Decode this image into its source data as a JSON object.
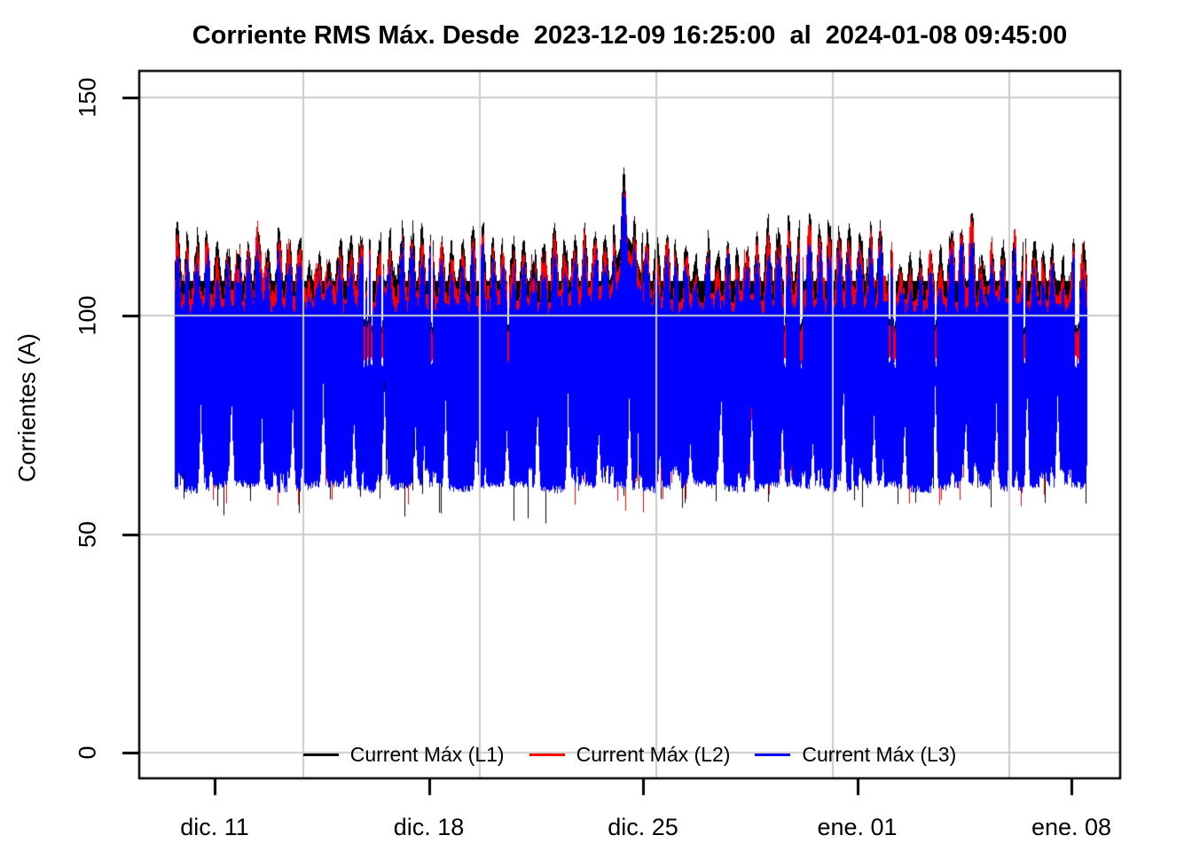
{
  "title": "Corriente RMS Máx. Desde  2023-12-09 16:25:00  al  2024-01-08 09:45:00",
  "chart_data": {
    "type": "line",
    "title": "Corriente RMS Máx. Desde  2023-12-09 16:25:00  al  2024-01-08 09:45:00",
    "xlabel": "",
    "ylabel": "Corrientes (A)",
    "x_start": "2023-12-09 16:25:00",
    "x_end": "2024-01-08 09:45:00",
    "x_tick_labels": [
      "dic. 11",
      "dic. 18",
      "dic. 25",
      "ene. 01",
      "ene. 08"
    ],
    "x_tick_day_offsets": [
      0,
      7,
      14,
      21,
      28
    ],
    "y_tick_labels": [
      "0",
      "50",
      "100",
      "150"
    ],
    "y_ticks": [
      0,
      50,
      100,
      150
    ],
    "ylim": [
      0,
      156
    ],
    "grid": true,
    "grid_color": "#cccccc",
    "background": "#ffffff",
    "legend_position": "bottom-center",
    "series": [
      {
        "name": "Current Máx (L1)",
        "color": "#000000"
      },
      {
        "name": "Current Máx (L2)",
        "color": "#ff0000"
      },
      {
        "name": "Current Máx (L3)",
        "color": "#0000ff"
      }
    ],
    "signal_summary": {
      "sampling": "5-min RMS maxima, ~30 days, three phases overplotted (L3 blue drawn last)",
      "lower_envelope_A": [
        59,
        63
      ],
      "daily_min_notch_top_A": [
        70,
        87
      ],
      "notch_width_days": 0.24,
      "upper_valley_A": [
        103,
        108
      ],
      "upper_peak_A": [
        113,
        122
      ],
      "peak_clusters_per_day": 3,
      "L2_offset_below_L1_A": [
        1,
        5
      ],
      "L3_offset_below_L2_A": [
        1,
        5
      ],
      "max_spike": {
        "series": "L1",
        "value_A": 134,
        "value_L3_A": 128,
        "day_offset_from_first_tick": 13.36,
        "date_approx": "2023-12-24"
      },
      "data_gap_day_offsets": [
        8.64,
        26.0
      ],
      "deep_dip_day_offsets": [
        19.16,
        22.2,
        28.2
      ],
      "render_seed": 7
    }
  }
}
